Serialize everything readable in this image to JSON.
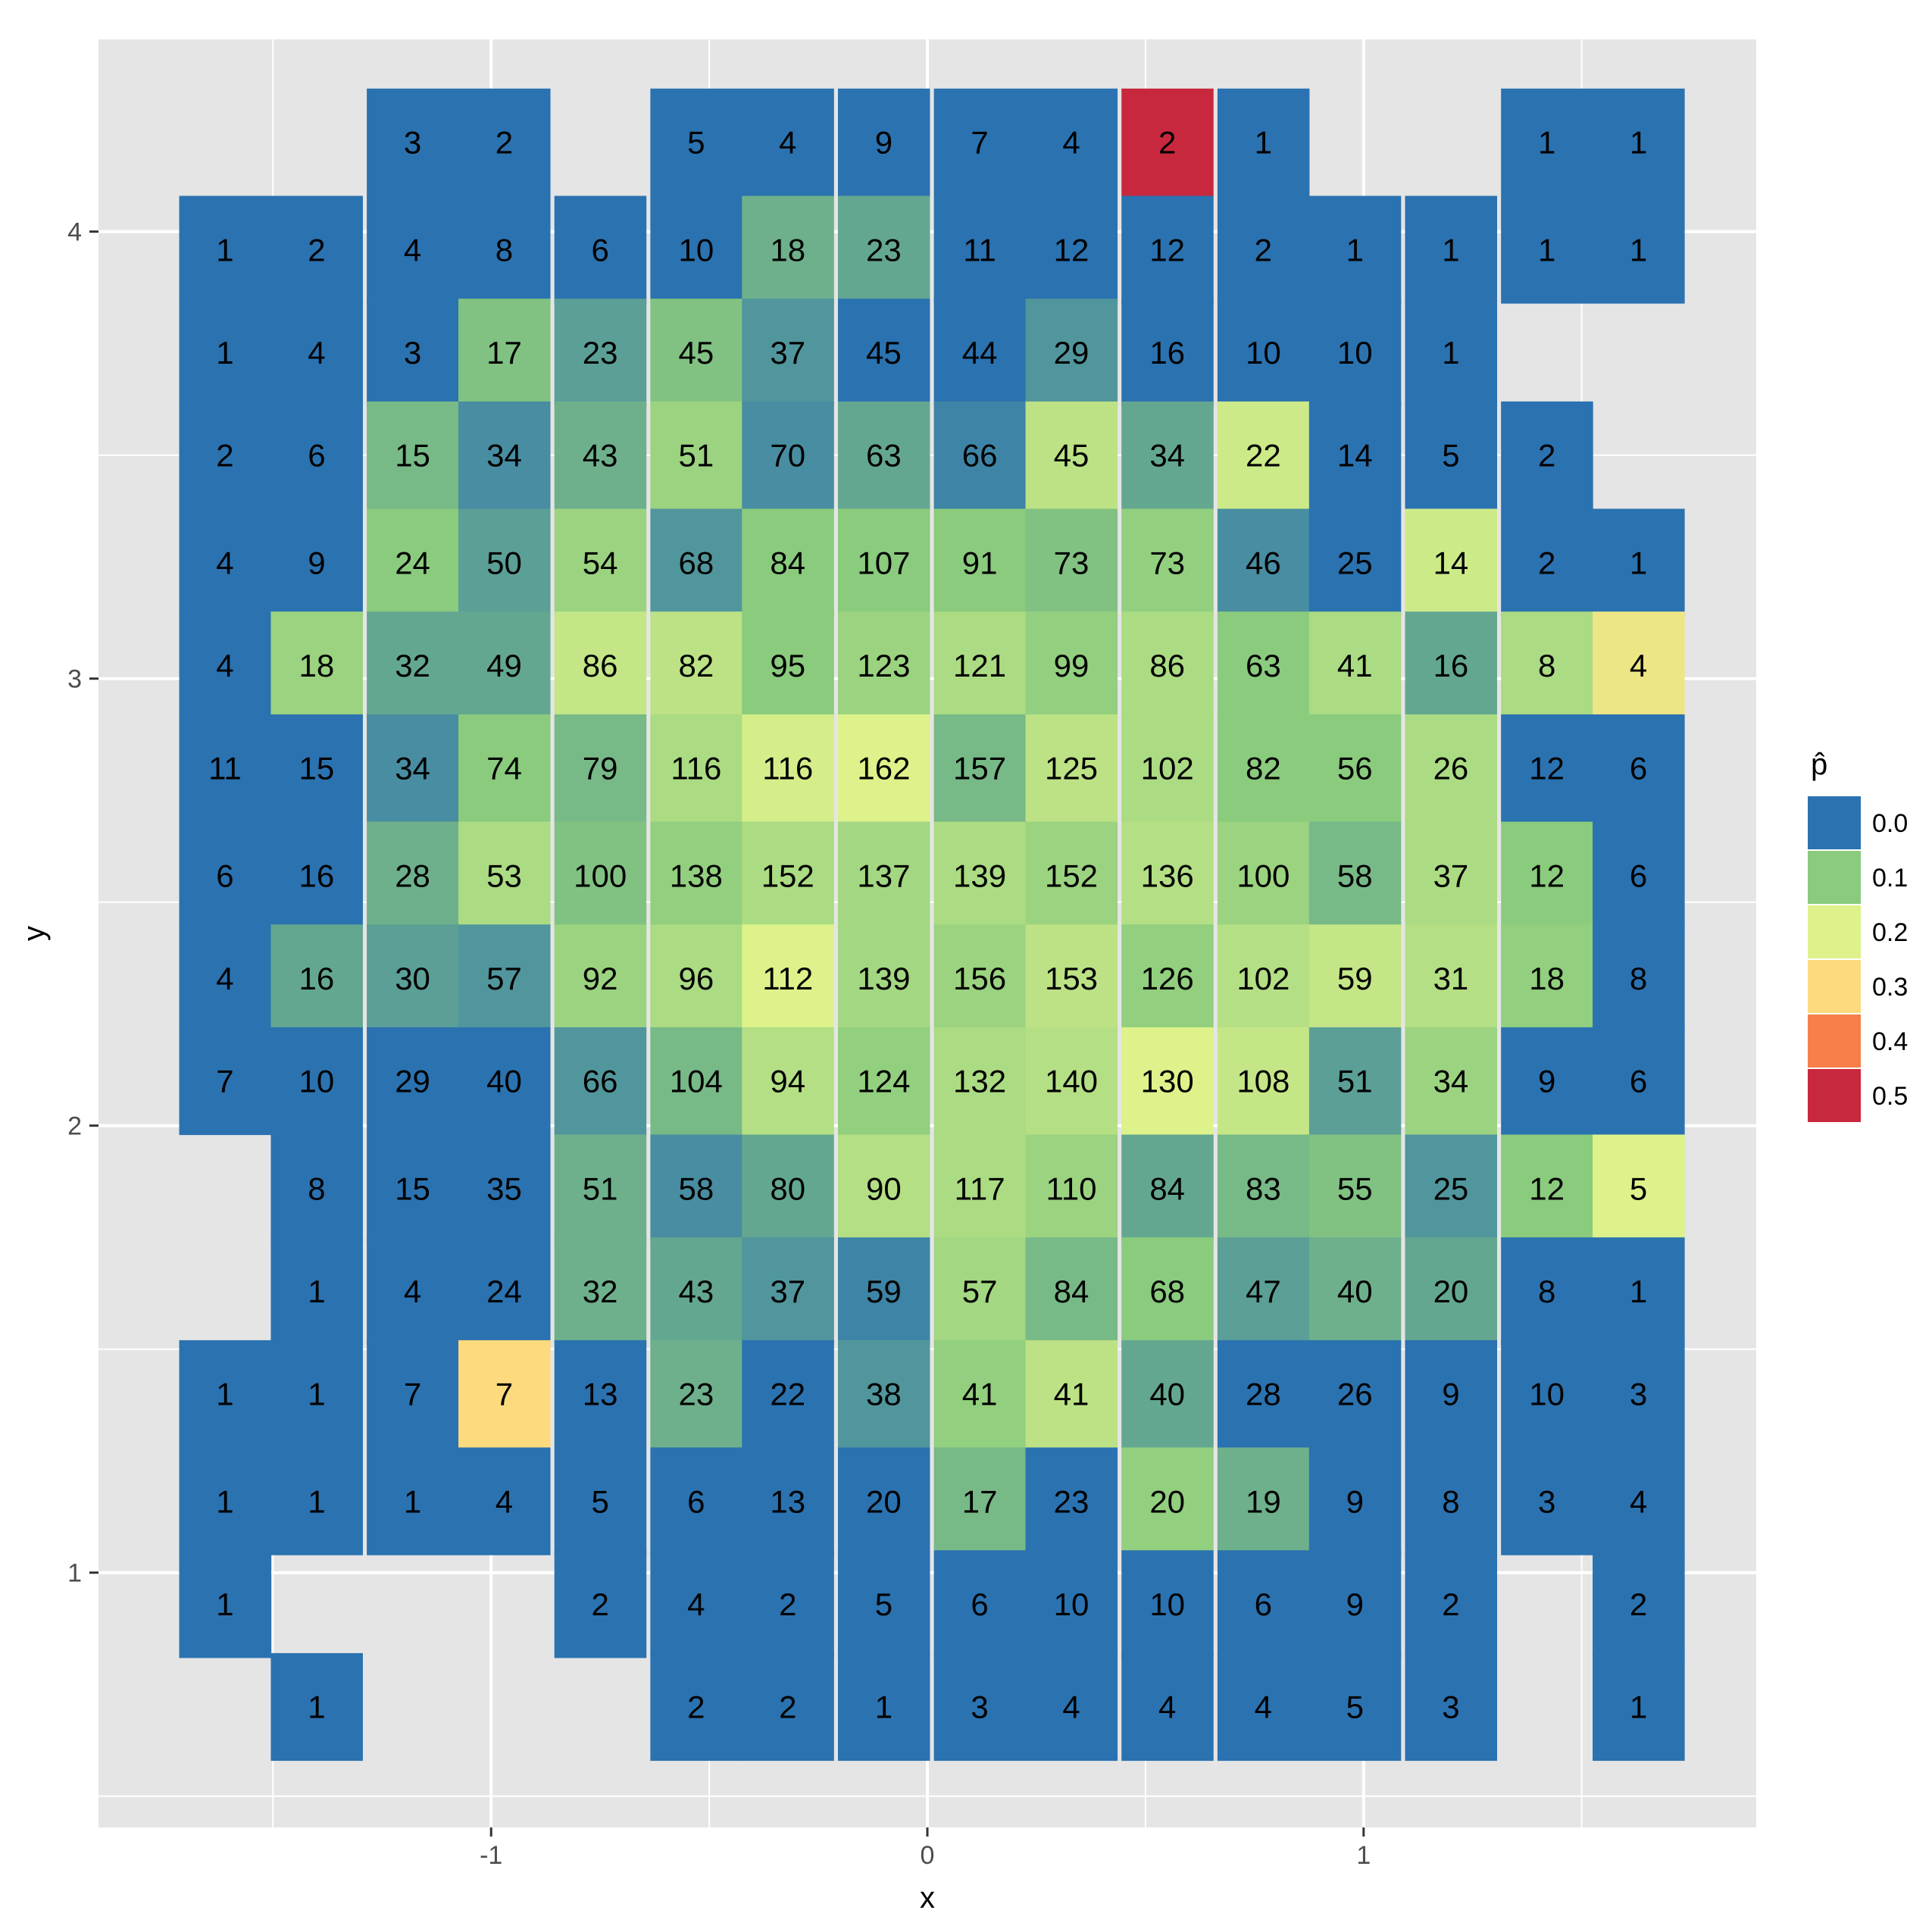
{
  "chart_data": {
    "type": "heatmap",
    "title": "",
    "xlabel": "x",
    "ylabel": "y",
    "x_ticks": [
      -1,
      0,
      1
    ],
    "y_ticks": [
      1,
      2,
      3,
      4
    ],
    "xlim": [
      -1.9,
      1.9
    ],
    "ylim": [
      0.43,
      4.43
    ],
    "grid": true,
    "legend": {
      "title": "p̂",
      "position": "right",
      "entries": [
        {
          "label": "0.0",
          "color": "#2B72B0"
        },
        {
          "label": "0.1",
          "color": "#8ACB7D"
        },
        {
          "label": "0.2",
          "color": "#DDF28A"
        },
        {
          "label": "0.3",
          "color": "#FCDA7D"
        },
        {
          "label": "0.4",
          "color": "#F67F4A"
        },
        {
          "label": "0.5",
          "color": "#C8283D"
        }
      ]
    },
    "column_centers": [
      -1.61,
      -1.4,
      -1.18,
      -0.97,
      -0.75,
      -0.53,
      -0.32,
      -0.1,
      0.12,
      0.33,
      0.55,
      0.77,
      0.98,
      1.2,
      1.42,
      1.63
    ],
    "row_centers": [
      4.2,
      3.96,
      3.73,
      3.5,
      3.26,
      3.03,
      2.8,
      2.56,
      2.33,
      2.1,
      1.86,
      1.63,
      1.4,
      1.16,
      0.93,
      0.7
    ],
    "rows": [
      [
        null,
        null,
        3,
        2,
        null,
        5,
        4,
        9,
        7,
        4,
        2,
        1,
        null,
        null,
        1,
        1
      ],
      [
        1,
        2,
        4,
        8,
        6,
        10,
        18,
        23,
        11,
        12,
        12,
        2,
        1,
        1,
        1,
        1
      ],
      [
        1,
        4,
        3,
        17,
        23,
        45,
        37,
        45,
        44,
        29,
        16,
        10,
        10,
        1,
        null,
        null
      ],
      [
        2,
        6,
        15,
        34,
        43,
        51,
        70,
        63,
        66,
        45,
        34,
        22,
        14,
        5,
        2,
        null
      ],
      [
        4,
        9,
        24,
        50,
        54,
        68,
        84,
        107,
        91,
        73,
        73,
        46,
        25,
        14,
        2,
        1
      ],
      [
        4,
        18,
        32,
        49,
        86,
        82,
        95,
        123,
        121,
        99,
        86,
        63,
        41,
        16,
        8,
        4
      ],
      [
        11,
        15,
        34,
        74,
        79,
        116,
        116,
        162,
        157,
        125,
        102,
        82,
        56,
        26,
        12,
        6
      ],
      [
        6,
        16,
        28,
        53,
        100,
        138,
        152,
        137,
        139,
        152,
        136,
        100,
        58,
        37,
        12,
        6
      ],
      [
        4,
        16,
        30,
        57,
        92,
        96,
        112,
        139,
        156,
        153,
        126,
        102,
        59,
        31,
        18,
        8
      ],
      [
        7,
        10,
        29,
        40,
        66,
        104,
        94,
        124,
        132,
        140,
        130,
        108,
        51,
        34,
        9,
        6
      ],
      [
        null,
        8,
        15,
        35,
        51,
        58,
        80,
        90,
        117,
        110,
        84,
        83,
        55,
        25,
        12,
        5
      ],
      [
        null,
        1,
        4,
        24,
        32,
        43,
        37,
        59,
        57,
        84,
        68,
        47,
        40,
        20,
        8,
        1
      ],
      [
        1,
        1,
        7,
        7,
        13,
        23,
        22,
        38,
        41,
        41,
        40,
        28,
        26,
        9,
        10,
        3
      ],
      [
        1,
        1,
        1,
        4,
        5,
        6,
        13,
        20,
        17,
        23,
        20,
        19,
        9,
        8,
        3,
        4
      ],
      [
        1,
        null,
        null,
        null,
        2,
        4,
        2,
        5,
        6,
        10,
        10,
        6,
        9,
        2,
        null,
        2
      ],
      [
        null,
        1,
        null,
        null,
        null,
        2,
        2,
        1,
        3,
        4,
        4,
        4,
        5,
        3,
        null,
        1
      ]
    ],
    "fill_values": [
      [
        null,
        null,
        0.0,
        0.0,
        null,
        0.0,
        0.0,
        0.0,
        0.0,
        0.0,
        0.5,
        0.0,
        null,
        null,
        0.0,
        0.0
      ],
      [
        0.0,
        0.0,
        0.0,
        0.0,
        0.0,
        0.0,
        0.07,
        0.06,
        0.0,
        0.0,
        0.0,
        0.0,
        0.0,
        0.0,
        0.0,
        0.0
      ],
      [
        0.0,
        0.0,
        0.0,
        0.09,
        0.05,
        0.09,
        0.04,
        0.0,
        0.0,
        0.04,
        0.0,
        0.0,
        0.0,
        0.0,
        null,
        null
      ],
      [
        0.0,
        0.0,
        0.08,
        0.03,
        0.07,
        0.12,
        0.03,
        0.06,
        0.02,
        0.16,
        0.06,
        0.18,
        0.0,
        0.0,
        0.0,
        null
      ],
      [
        0.0,
        0.0,
        0.1,
        0.05,
        0.12,
        0.04,
        0.1,
        0.1,
        0.1,
        0.09,
        0.11,
        0.03,
        0.0,
        0.18,
        0.0,
        0.0
      ],
      [
        0.0,
        0.12,
        0.06,
        0.06,
        0.17,
        0.16,
        0.1,
        0.12,
        0.14,
        0.11,
        0.14,
        0.1,
        0.14,
        0.06,
        0.14,
        0.25
      ],
      [
        0.0,
        0.0,
        0.03,
        0.1,
        0.08,
        0.14,
        0.19,
        0.2,
        0.08,
        0.16,
        0.14,
        0.1,
        0.1,
        0.14,
        0.0,
        0.0
      ],
      [
        0.0,
        0.0,
        0.07,
        0.14,
        0.09,
        0.11,
        0.14,
        0.13,
        0.14,
        0.12,
        0.15,
        0.12,
        0.08,
        0.14,
        0.1,
        0.0
      ],
      [
        0.0,
        0.06,
        0.05,
        0.04,
        0.12,
        0.14,
        0.2,
        0.13,
        0.12,
        0.16,
        0.11,
        0.15,
        0.17,
        0.15,
        0.11,
        0.0
      ],
      [
        0.0,
        0.0,
        0.0,
        0.0,
        0.04,
        0.08,
        0.15,
        0.11,
        0.14,
        0.15,
        0.2,
        0.17,
        0.05,
        0.12,
        0.0,
        0.0
      ],
      [
        null,
        0.0,
        0.0,
        0.0,
        0.07,
        0.03,
        0.06,
        0.15,
        0.14,
        0.12,
        0.06,
        0.08,
        0.09,
        0.04,
        0.1,
        0.2
      ],
      [
        null,
        0.0,
        0.0,
        0.0,
        0.07,
        0.06,
        0.04,
        0.02,
        0.13,
        0.08,
        0.1,
        0.05,
        0.07,
        0.06,
        0.0,
        0.0
      ],
      [
        0.0,
        0.0,
        0.0,
        0.3,
        0.0,
        0.07,
        0.0,
        0.04,
        0.11,
        0.16,
        0.06,
        0.0,
        0.0,
        0.0,
        0.0,
        0.0
      ],
      [
        0.0,
        0.0,
        0.0,
        0.0,
        0.0,
        0.0,
        0.0,
        0.0,
        0.08,
        0.0,
        0.11,
        0.07,
        0.0,
        0.0,
        0.0,
        0.0
      ],
      [
        0.0,
        null,
        null,
        null,
        0.0,
        0.0,
        0.0,
        0.0,
        0.0,
        0.0,
        0.0,
        0.0,
        0.0,
        0.0,
        null,
        0.0
      ],
      [
        null,
        0.0,
        null,
        null,
        null,
        0.0,
        0.0,
        0.0,
        0.0,
        0.0,
        0.0,
        0.0,
        0.0,
        0.0,
        null,
        0.0
      ]
    ],
    "color_scale": [
      {
        "value": 0.0,
        "color": "#2B72B0"
      },
      {
        "value": 0.1,
        "color": "#8ACB7D"
      },
      {
        "value": 0.2,
        "color": "#DDF28A"
      },
      {
        "value": 0.3,
        "color": "#FCDA7D"
      },
      {
        "value": 0.4,
        "color": "#F67F4A"
      },
      {
        "value": 0.5,
        "color": "#C8283D"
      }
    ],
    "panel_background": "#E5E5E5",
    "grid_color": "#FFFFFF"
  }
}
